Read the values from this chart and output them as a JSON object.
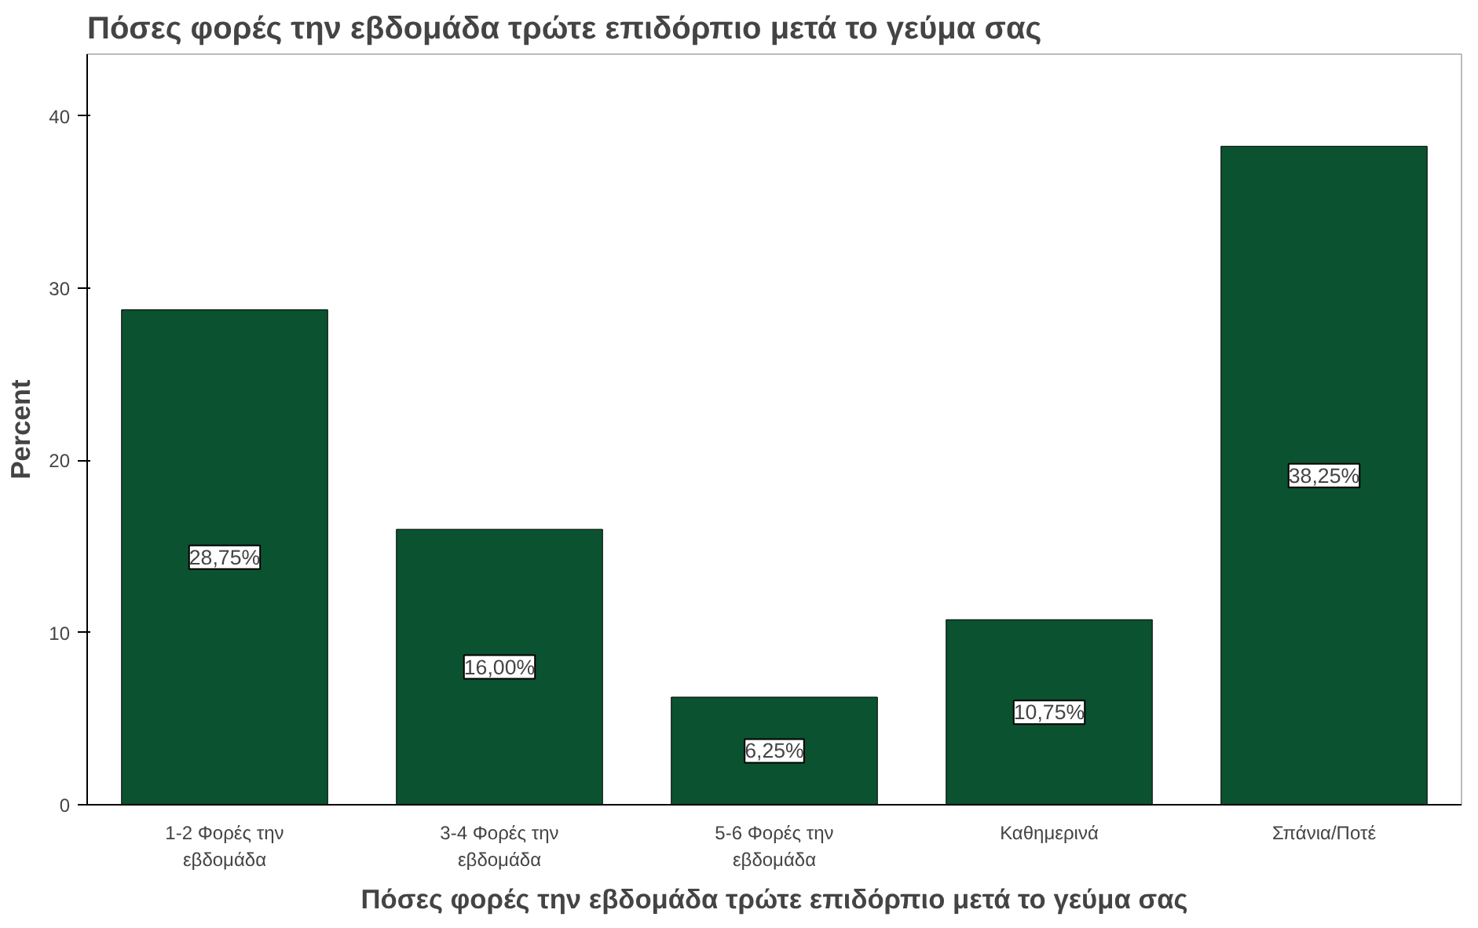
{
  "chart_data": {
    "type": "bar",
    "title": "Πόσες φορές την εβδομάδα τρώτε επιδόρπιο μετά το γεύμα σας",
    "xlabel": "Πόσες φορές την εβδομάδα τρώτε επιδόρπιο μετά το γεύμα σας",
    "ylabel": "Percent",
    "categories": [
      "1-2 Φορές την εβδομάδα",
      "3-4 Φορές την εβδομάδα",
      "5-6 Φορές την εβδομάδα",
      "Καθημερινά",
      "Σπάνια/Ποτέ"
    ],
    "values": [
      28.75,
      16.0,
      6.25,
      10.75,
      38.25
    ],
    "value_labels": [
      "28,75%",
      "16,00%",
      "6,25%",
      "10,75%",
      "38,25%"
    ],
    "color": "#0b5230",
    "ylim": [
      0,
      43.6
    ],
    "yticks": [
      0,
      10,
      20,
      30,
      40
    ],
    "grid": false
  }
}
